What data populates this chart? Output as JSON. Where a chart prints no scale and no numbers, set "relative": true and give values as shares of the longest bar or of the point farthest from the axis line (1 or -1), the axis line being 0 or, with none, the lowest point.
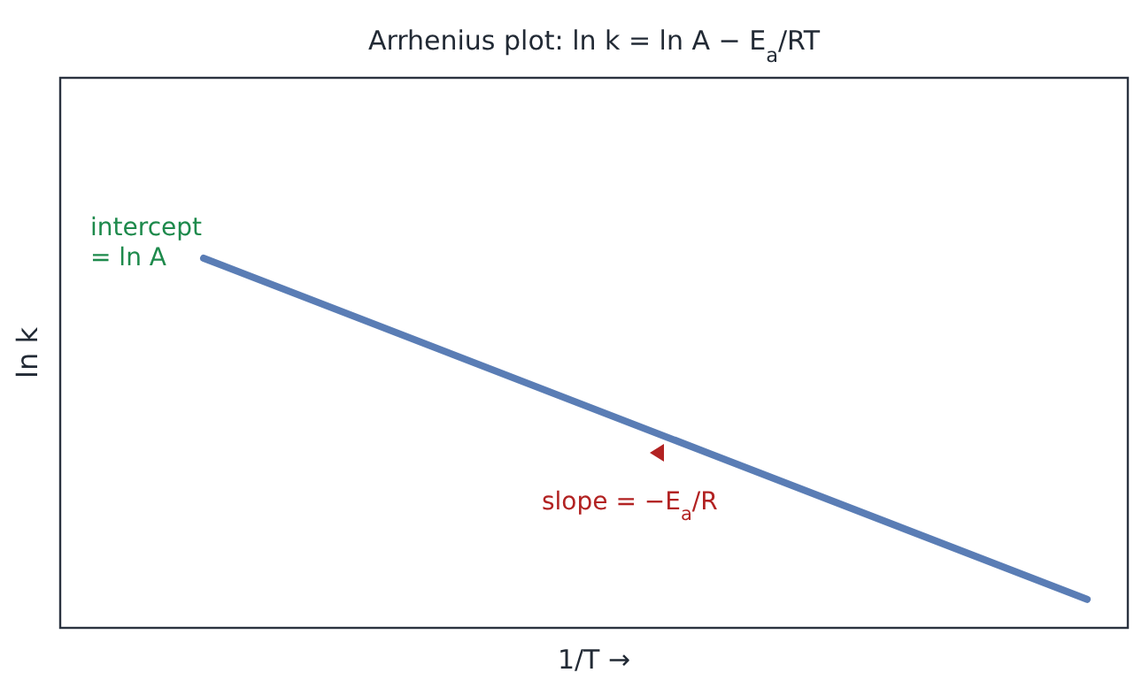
{
  "chart_data": {
    "type": "line",
    "title": "Arrhenius plot:  ln k = ln A − E$_{a}$/RT",
    "xlabel": "1/T →",
    "ylabel": "ln k",
    "relative": true,
    "categories": [
      null,
      null
    ],
    "series": [
      {
        "color": "#5a7db5",
        "values": [
          1,
          0.077
        ]
      }
    ],
    "annotations": [
      "intercept\n= ln A",
      "slope = −E$_{a}$/R"
    ],
    "legend": false,
    "marker": "none",
    "line_style": "solid"
  }
}
